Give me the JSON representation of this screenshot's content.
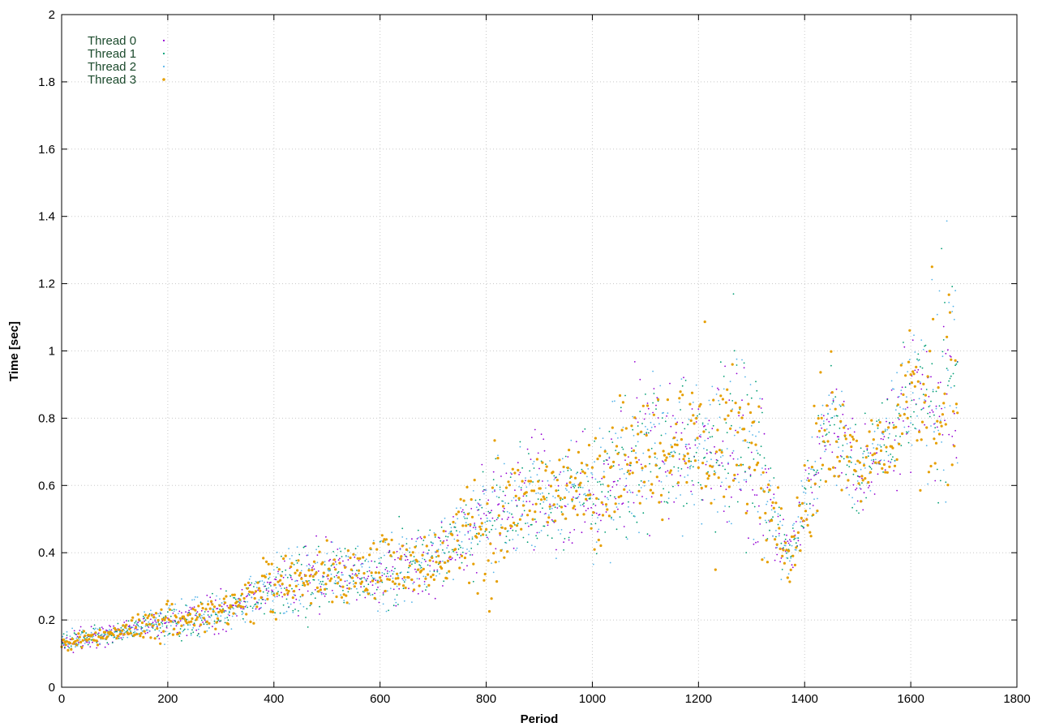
{
  "chart_data": {
    "type": "scatter",
    "title": "",
    "xlabel": "Period",
    "ylabel": "Time [sec]",
    "xlim": [
      0,
      1800
    ],
    "ylim": [
      0,
      2
    ],
    "xticks": [
      "0",
      "200",
      "400",
      "600",
      "800",
      "1000",
      "1200",
      "1400",
      "1600",
      "1800"
    ],
    "yticks": [
      "0",
      "0.2",
      "0.4",
      "0.6",
      "0.8",
      "1",
      "1.2",
      "1.4",
      "1.6",
      "1.8",
      "2"
    ],
    "grid": true,
    "legend_position": "top-left",
    "point_count_per_series": 1690,
    "series": [
      {
        "name": "Thread 0",
        "color": "#9400d3"
      },
      {
        "name": "Thread 1",
        "color": "#009e73"
      },
      {
        "name": "Thread 2",
        "color": "#56b4e9"
      },
      {
        "name": "Thread 3",
        "color": "#e69f00"
      }
    ],
    "trend": [
      {
        "x": 0,
        "y": 0.13,
        "spread": 0.03
      },
      {
        "x": 100,
        "y": 0.16,
        "spread": 0.04
      },
      {
        "x": 200,
        "y": 0.2,
        "spread": 0.06
      },
      {
        "x": 300,
        "y": 0.22,
        "spread": 0.08
      },
      {
        "x": 400,
        "y": 0.3,
        "spread": 0.1
      },
      {
        "x": 500,
        "y": 0.34,
        "spread": 0.12
      },
      {
        "x": 600,
        "y": 0.33,
        "spread": 0.12
      },
      {
        "x": 700,
        "y": 0.38,
        "spread": 0.12
      },
      {
        "x": 800,
        "y": 0.5,
        "spread": 0.2
      },
      {
        "x": 900,
        "y": 0.56,
        "spread": 0.2
      },
      {
        "x": 1000,
        "y": 0.58,
        "spread": 0.22
      },
      {
        "x": 1100,
        "y": 0.7,
        "spread": 0.28
      },
      {
        "x": 1200,
        "y": 0.72,
        "spread": 0.3
      },
      {
        "x": 1300,
        "y": 0.7,
        "spread": 0.32
      },
      {
        "x": 1370,
        "y": 0.38,
        "spread": 0.12
      },
      {
        "x": 1450,
        "y": 0.8,
        "spread": 0.2
      },
      {
        "x": 1500,
        "y": 0.62,
        "spread": 0.14
      },
      {
        "x": 1600,
        "y": 0.85,
        "spread": 0.3
      },
      {
        "x": 1690,
        "y": 0.95,
        "spread": 0.4
      }
    ]
  }
}
